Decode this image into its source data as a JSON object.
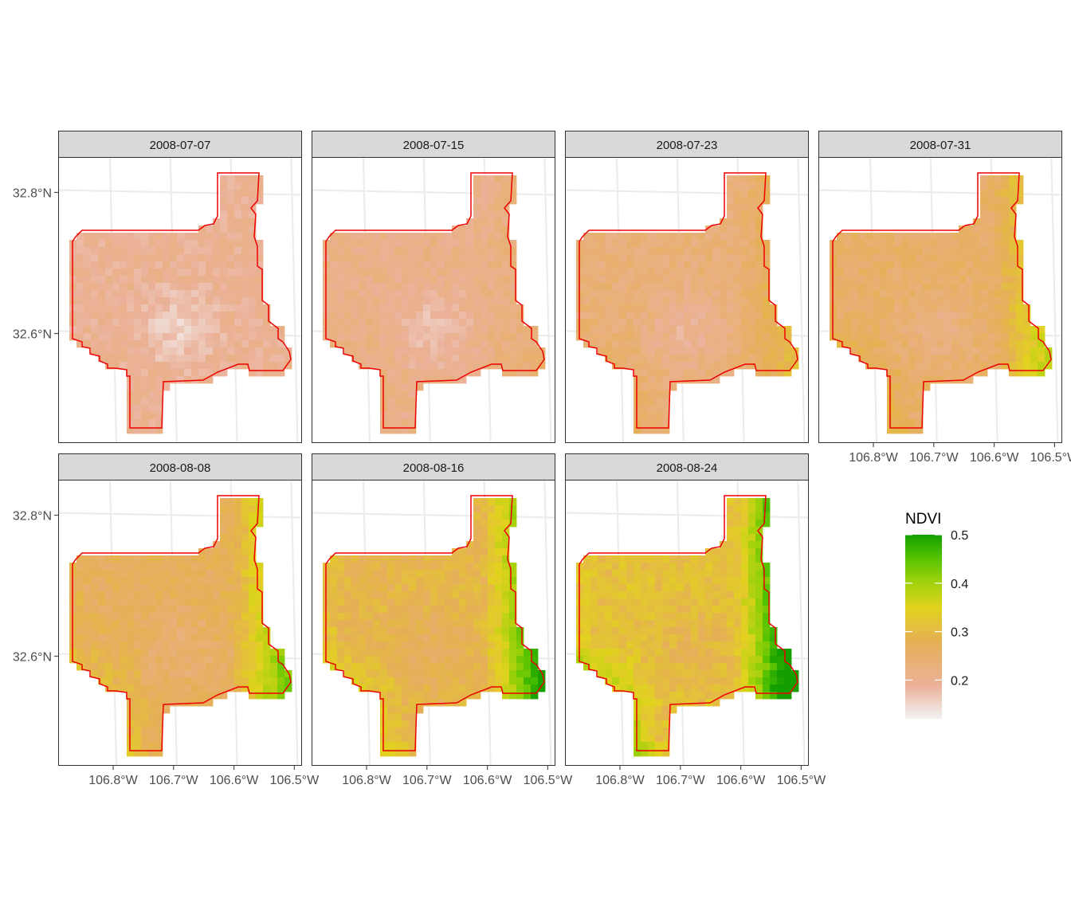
{
  "colors": {
    "panel_bg": "#ffffff",
    "strip_bg": "#d9d9d9",
    "strip_border": "#333333",
    "panel_border": "#333333",
    "grid": "#ebebeb",
    "outline": "#ee0000",
    "axis_text": "#4d4d4d",
    "ramp": [
      "#f2f2f2",
      "#ebb199",
      "#e5b055",
      "#e2d21e",
      "#9bd10a",
      "#52c200",
      "#149f00"
    ]
  },
  "chart_data": {
    "type": "heatmap",
    "variable": "NDVI",
    "facets": [
      {
        "label": "2008-07-07",
        "level": 0.0
      },
      {
        "label": "2008-07-15",
        "level": 0.12
      },
      {
        "label": "2008-07-23",
        "level": 0.3
      },
      {
        "label": "2008-07-31",
        "level": 0.48
      },
      {
        "label": "2008-08-08",
        "level": 0.64
      },
      {
        "label": "2008-08-16",
        "level": 0.82
      },
      {
        "label": "2008-08-24",
        "level": 1.0
      }
    ],
    "x_ticks": [
      "106.8°W",
      "106.7°W",
      "106.6°W",
      "106.5°W"
    ],
    "y_ticks": [
      "32.8°N",
      "32.6°N"
    ],
    "x_tick_values": [
      -106.8,
      -106.7,
      -106.6,
      -106.5
    ],
    "y_tick_values": [
      32.8,
      32.6
    ],
    "xlim": [
      -106.88,
      -106.48
    ],
    "ylim": [
      32.45,
      32.85
    ],
    "legend": {
      "title": "NDVI",
      "position": "right",
      "tick_labels": [
        "0.5",
        "0.4",
        "0.3",
        "0.2"
      ],
      "tick_values": [
        0.5,
        0.4,
        0.3,
        0.2
      ],
      "range": [
        0.12,
        0.5
      ]
    }
  }
}
